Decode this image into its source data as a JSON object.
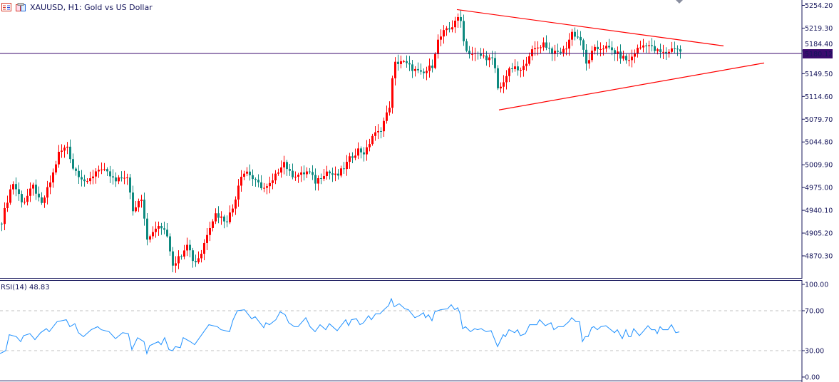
{
  "header": {
    "symbol_title": "XAUUSD, H1:  Gold vs US Dollar"
  },
  "colors": {
    "bull": "#ff0000",
    "bear": "#0e8a80",
    "rsi_line": "#1e90ff",
    "trendline": "#ff0000",
    "price_line": "#3a0a6e",
    "axis": "#14145a",
    "level": "#c0c0c0"
  },
  "chart_data": [
    {
      "type": "candlestick",
      "title": "XAUUSD, H1: Gold vs US Dollar",
      "current_price": "5180.12",
      "ylim": [
        4855,
        5262
      ],
      "yticks": [
        "5254.20",
        "5219.30",
        "5184.40",
        "5149.50",
        "5114.60",
        "5079.70",
        "5044.80",
        "5009.90",
        "4975.00",
        "4940.10",
        "4905.20",
        "4870.30"
      ],
      "bar_count": 239,
      "close_path": [
        [
          0,
          4923.7
        ],
        [
          3.75,
          4983.7
        ],
        [
          7.5,
          4951
        ],
        [
          11.25,
          4978.3
        ],
        [
          13.75,
          4945.6
        ],
        [
          17.5,
          4989.2
        ],
        [
          20,
          5027.4
        ],
        [
          23,
          5038.3
        ],
        [
          25,
          5005.5
        ],
        [
          30,
          4980.5
        ],
        [
          33.75,
          5005.5
        ],
        [
          37.5,
          4994.6
        ],
        [
          40,
          4983.7
        ],
        [
          43.75,
          4994.6
        ],
        [
          46.25,
          4934.7
        ],
        [
          48.75,
          4967.4
        ],
        [
          51.25,
          4891
        ],
        [
          53.75,
          4912.8
        ],
        [
          57.5,
          4912.8
        ],
        [
          60,
          4858.3
        ],
        [
          62.5,
          4869.2
        ],
        [
          65,
          4891
        ],
        [
          67.5,
          4858.3
        ],
        [
          70,
          4874.7
        ],
        [
          72.5,
          4912.8
        ],
        [
          75,
          4934.7
        ],
        [
          78.75,
          4923.7
        ],
        [
          81.25,
          4945.6
        ],
        [
          83.75,
          4994.6
        ],
        [
          86.25,
          5000.1
        ],
        [
          88.75,
          4983.7
        ],
        [
          92.5,
          4972.8
        ],
        [
          95,
          4983.7
        ],
        [
          98.75,
          5016.4
        ],
        [
          101.25,
          4994.6
        ],
        [
          105,
          4994.6
        ],
        [
          107.5,
          5000.1
        ],
        [
          110,
          4983.7
        ],
        [
          113.75,
          5000.1
        ],
        [
          117.5,
          4991.4
        ],
        [
          120,
          5005.5
        ],
        [
          122.5,
          5021.9
        ],
        [
          125,
          5032.8
        ],
        [
          127.5,
          5027.4
        ],
        [
          130,
          5054.6
        ],
        [
          132.5,
          5060.1
        ],
        [
          135,
          5087.3
        ],
        [
          136.25,
          5103.7
        ],
        [
          137.5,
          5163.7
        ],
        [
          140,
          5169.1
        ],
        [
          143.75,
          5158.2
        ],
        [
          147.5,
          5147.3
        ],
        [
          151.25,
          5163.7
        ],
        [
          152.5,
          5196.4
        ],
        [
          155,
          5212.8
        ],
        [
          157.5,
          5218.2
        ],
        [
          159.25,
          5234.6
        ],
        [
          161.25,
          5229.1
        ],
        [
          162.5,
          5185.5
        ],
        [
          165,
          5180
        ],
        [
          170,
          5174.6
        ],
        [
          172.5,
          5169.1
        ],
        [
          174.25,
          5120.1
        ],
        [
          176.25,
          5141.9
        ],
        [
          178.75,
          5158.2
        ],
        [
          182.5,
          5152.8
        ],
        [
          185,
          5180
        ],
        [
          190,
          5196.4
        ],
        [
          193.75,
          5180
        ],
        [
          197.5,
          5185.5
        ],
        [
          200,
          5212.8
        ],
        [
          203,
          5201.9
        ],
        [
          205,
          5163.7
        ],
        [
          207.5,
          5185.5
        ],
        [
          211.25,
          5190.9
        ],
        [
          213.75,
          5185.5
        ],
        [
          217.5,
          5174.6
        ],
        [
          220,
          5169.1
        ],
        [
          222.5,
          5185.5
        ],
        [
          226.25,
          5196.4
        ],
        [
          228.75,
          5185.5
        ],
        [
          232.5,
          5180
        ],
        [
          236.25,
          5190.9
        ],
        [
          238.75,
          5180.12
        ]
      ],
      "trendlines": [
        {
          "name": "upper",
          "from": [
            159.75,
            5247.7
          ],
          "to": [
            253.25,
            5192.1
          ]
        },
        {
          "name": "lower",
          "from": [
            174.5,
            5093.9
          ],
          "to": [
            267.5,
            5165.9
          ]
        }
      ]
    },
    {
      "type": "line",
      "title": "RSI(14) 48.83",
      "label": "RSI(14) 48.83",
      "ylim": [
        0,
        100
      ],
      "levels": [
        30,
        70
      ],
      "yticks": [
        "100.00",
        "70.00",
        "30.00",
        "0.00"
      ],
      "series": [
        {
          "name": "RSI(14)",
          "points": [
            [
              0,
              27
            ],
            [
              2,
              30
            ],
            [
              3.25,
              46
            ],
            [
              5.75,
              44
            ],
            [
              7.25,
              39
            ],
            [
              8.25,
              45
            ],
            [
              10.5,
              47
            ],
            [
              12.25,
              41
            ],
            [
              14.25,
              48
            ],
            [
              16.25,
              52
            ],
            [
              17.25,
              49
            ],
            [
              20,
              59
            ],
            [
              23.25,
              61
            ],
            [
              24.5,
              54
            ],
            [
              26.25,
              57
            ],
            [
              27.5,
              48
            ],
            [
              29.25,
              44
            ],
            [
              32,
              51
            ],
            [
              34.25,
              54
            ],
            [
              35.5,
              51
            ],
            [
              38.25,
              49
            ],
            [
              40.5,
              42
            ],
            [
              43,
              48
            ],
            [
              45,
              47
            ],
            [
              46.25,
              31
            ],
            [
              48.25,
              43
            ],
            [
              50.5,
              39
            ],
            [
              51.5,
              27
            ],
            [
              52.5,
              35
            ],
            [
              55.5,
              39
            ],
            [
              56.5,
              36
            ],
            [
              57.75,
              43
            ],
            [
              59.25,
              31
            ],
            [
              60.5,
              30
            ],
            [
              61.5,
              34
            ],
            [
              63.25,
              33
            ],
            [
              64.25,
              43
            ],
            [
              66.75,
              39
            ],
            [
              68.25,
              36
            ],
            [
              73.25,
              56
            ],
            [
              76.25,
              54
            ],
            [
              77.5,
              51
            ],
            [
              80.5,
              49
            ],
            [
              81.75,
              61
            ],
            [
              83.25,
              70
            ],
            [
              85.75,
              71
            ],
            [
              88.25,
              62
            ],
            [
              89.5,
              64
            ],
            [
              92.5,
              53
            ],
            [
              93.25,
              58
            ],
            [
              94.5,
              56
            ],
            [
              96.75,
              61
            ],
            [
              98.25,
              69
            ],
            [
              100,
              66
            ],
            [
              101.25,
              58
            ],
            [
              103.25,
              54
            ],
            [
              104.5,
              54
            ],
            [
              107.25,
              63
            ],
            [
              108.75,
              54
            ],
            [
              110.5,
              49
            ],
            [
              112.25,
              56
            ],
            [
              114.25,
              51
            ],
            [
              115.5,
              57
            ],
            [
              118.25,
              50
            ],
            [
              121.25,
              61
            ],
            [
              122.25,
              55
            ],
            [
              123.25,
              61
            ],
            [
              125,
              62
            ],
            [
              126.25,
              56
            ],
            [
              127.5,
              58
            ],
            [
              129.25,
              65
            ],
            [
              130.25,
              61
            ],
            [
              131.75,
              67
            ],
            [
              133.25,
              67
            ],
            [
              135,
              72
            ],
            [
              136.25,
              75
            ],
            [
              137.25,
              82
            ],
            [
              138.25,
              74
            ],
            [
              140,
              77
            ],
            [
              142,
              72
            ],
            [
              143.25,
              71
            ],
            [
              145.5,
              63
            ],
            [
              147,
              65
            ],
            [
              148.5,
              68
            ],
            [
              149.25,
              63
            ],
            [
              150.25,
              66
            ],
            [
              151.5,
              60
            ],
            [
              152.5,
              69
            ],
            [
              154.5,
              71
            ],
            [
              157,
              72
            ],
            [
              158.25,
              76
            ],
            [
              159.5,
              71
            ],
            [
              160.5,
              73
            ],
            [
              161.25,
              68
            ],
            [
              162.25,
              52
            ],
            [
              163.25,
              54
            ],
            [
              165,
              49
            ],
            [
              166.5,
              52
            ],
            [
              167.5,
              51
            ],
            [
              168.75,
              52
            ],
            [
              170.5,
              49
            ],
            [
              172.25,
              50
            ],
            [
              174.5,
              34
            ],
            [
              176.5,
              46
            ],
            [
              177.25,
              44
            ],
            [
              178.5,
              51
            ],
            [
              180.5,
              48
            ],
            [
              181.5,
              51
            ],
            [
              182.5,
              45
            ],
            [
              184.25,
              47
            ],
            [
              185.75,
              56
            ],
            [
              188.25,
              56
            ],
            [
              189.25,
              61
            ],
            [
              191.25,
              55
            ],
            [
              193.25,
              58
            ],
            [
              194.25,
              51
            ],
            [
              195.75,
              54
            ],
            [
              197.5,
              54
            ],
            [
              199.5,
              59
            ],
            [
              200.5,
              63
            ],
            [
              202,
              59
            ],
            [
              203.25,
              59
            ],
            [
              204.25,
              39
            ],
            [
              205.25,
              44
            ],
            [
              206.25,
              44
            ],
            [
              207.5,
              53
            ],
            [
              208.25,
              54
            ],
            [
              209.5,
              51
            ],
            [
              210.75,
              54
            ],
            [
              212.5,
              55
            ],
            [
              215.5,
              48
            ],
            [
              216.5,
              51
            ],
            [
              218.25,
              42
            ],
            [
              219.5,
              51
            ],
            [
              220.5,
              44
            ],
            [
              221.25,
              44
            ],
            [
              222.25,
              52
            ],
            [
              224.25,
              45
            ],
            [
              225.5,
              49
            ],
            [
              227.25,
              55
            ],
            [
              228.5,
              51
            ],
            [
              229.75,
              51
            ],
            [
              230.5,
              47
            ],
            [
              231.5,
              54
            ],
            [
              232.5,
              51
            ],
            [
              234.25,
              51
            ],
            [
              235.5,
              56
            ],
            [
              237,
              48
            ],
            [
              238.25,
              48.83
            ]
          ]
        }
      ]
    }
  ]
}
